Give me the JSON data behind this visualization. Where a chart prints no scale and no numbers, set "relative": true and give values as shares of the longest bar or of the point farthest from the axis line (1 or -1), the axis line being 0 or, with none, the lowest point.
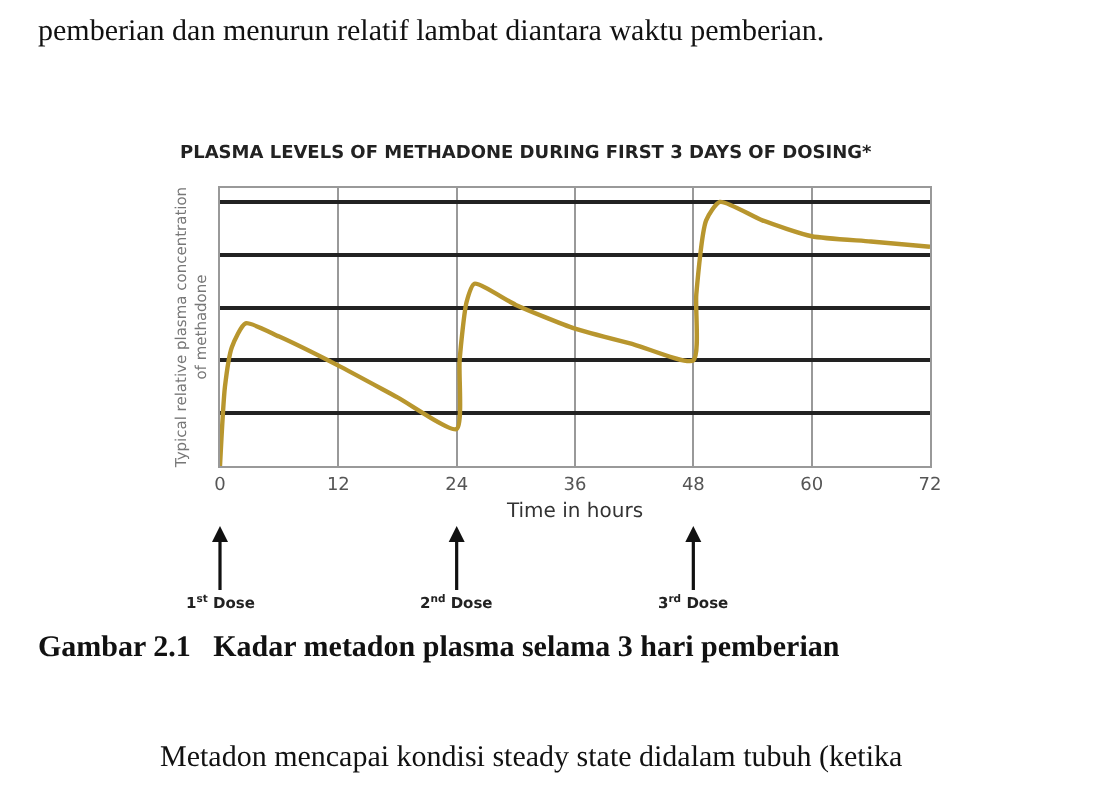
{
  "chart_data": {
    "type": "line",
    "relative": true,
    "title": "PLASMA LEVELS OF METHADONE DURING FIRST 3 DAYS OF DOSING*",
    "ylabel": "Typical relative plasma concentration\nof methadone",
    "xlabel": "Time in hours",
    "x": [
      0,
      0.5,
      1.2,
      2.6,
      6,
      12,
      18,
      24,
      24.3,
      25,
      25.8,
      30,
      36,
      42,
      48,
      48.3,
      49.3,
      50.7,
      55,
      60,
      66,
      72
    ],
    "series": [
      {
        "color": "#b8962e",
        "values": [
          0,
          0.3,
          0.45,
          0.54,
          0.49,
          0.38,
          0.26,
          0.14,
          0.4,
          0.62,
          0.69,
          0.61,
          0.52,
          0.46,
          0.4,
          0.65,
          0.93,
          1.0,
          0.93,
          0.87,
          0.85,
          0.83
        ]
      }
    ],
    "xlim": [
      0,
      72
    ],
    "xticks": [
      0,
      12,
      24,
      36,
      48,
      60,
      72
    ],
    "grid": true,
    "marker": "none",
    "line_style": "solid",
    "annotations": [
      "1$^{st}$ Dose",
      "2$^{nd}$ Dose",
      "3$^{rd}$ Dose",
      "pemberian dan menurun relatif lambat diantara waktu pemberian.",
      "Gambar 2.1   Kadar metadon plasma selama 3 hari pemberian",
      "Metadon mencapai kondisi steady state didalam tubuh (ketika"
    ]
  }
}
